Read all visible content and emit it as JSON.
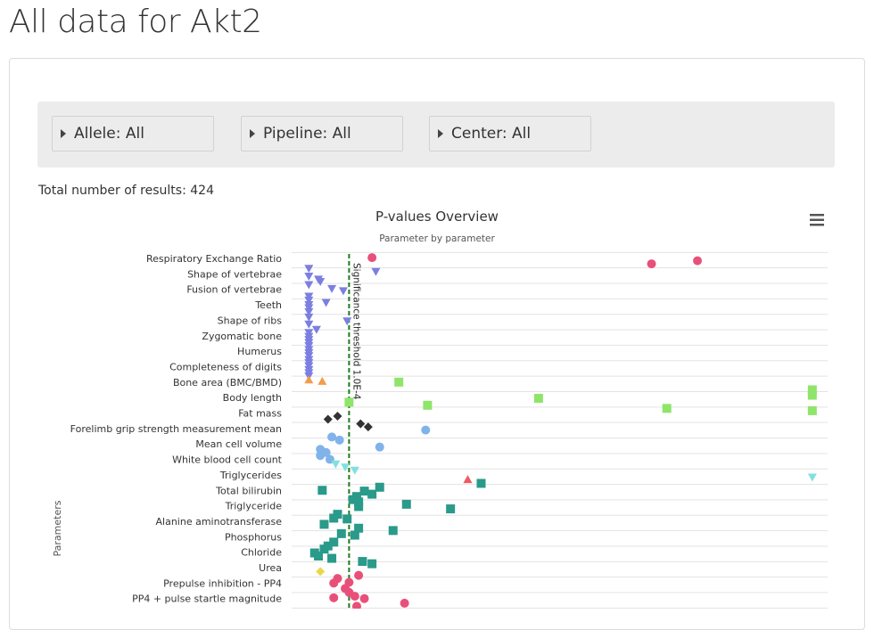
{
  "page": {
    "title": "All data for Akt2",
    "total_label": "Total number of results: ",
    "total_value": "424"
  },
  "filters": [
    {
      "label": "Allele: All"
    },
    {
      "label": "Pipeline: All"
    },
    {
      "label": "Center: All"
    }
  ],
  "colors": {
    "pink": "#e8507a",
    "purple": "#7b7fe0",
    "orange": "#f59b4c",
    "lightgreen": "#8ee56a",
    "black": "#333333",
    "lightblue": "#7fb3ea",
    "cyan": "#7fe1e0",
    "red": "#f05a62",
    "teal": "#2a9a8a",
    "yellow": "#e8d84a",
    "threshold": "#1e7a1e"
  },
  "chart_data": {
    "type": "scatter",
    "title": "P-values Overview",
    "subtitle": "Parameter by parameter",
    "ylabel": "Parameters",
    "threshold_label": "Significance threshold 1.0E-4",
    "threshold_x": 1,
    "xlim": [
      -2,
      26
    ],
    "categories": [
      "Respiratory Exchange Ratio",
      "",
      "Shape of vertebrae",
      "",
      "Fusion of vertebrae",
      "",
      "Teeth",
      "",
      "Shape of ribs",
      "",
      "Zygomatic bone",
      "",
      "Humerus",
      "",
      "Completeness of digits",
      "",
      "Bone area (BMC/BMD)",
      "",
      "Body length",
      "",
      "Fat mass",
      "",
      "Forelimb grip strength measurement mean",
      "",
      "Mean cell volume",
      "",
      "White blood cell count",
      "",
      "Triglycerides",
      "",
      "Total bilirubin",
      "",
      "Triglyceride",
      "",
      "Alanine aminotransferase",
      "",
      "Phosphorus",
      "",
      "Chloride",
      "",
      "Urea",
      "",
      "Prepulse inhibition - PP4",
      "",
      "PP4 + pulse startle magnitude",
      ""
    ],
    "visible_labels": [
      {
        "label": "Respiratory Exchange Ratio",
        "index": 0
      },
      {
        "label": "Shape of vertebrae",
        "index": 1
      },
      {
        "label": "Fusion of vertebrae",
        "index": 2
      },
      {
        "label": "Teeth",
        "index": 3
      },
      {
        "label": "Shape of ribs",
        "index": 4
      },
      {
        "label": "Zygomatic bone",
        "index": 5
      },
      {
        "label": "Humerus",
        "index": 6
      },
      {
        "label": "Completeness of digits",
        "index": 7
      },
      {
        "label": "Bone area (BMC/BMD)",
        "index": 8
      },
      {
        "label": "Body length",
        "index": 9
      },
      {
        "label": "Fat mass",
        "index": 10
      },
      {
        "label": "Forelimb grip strength measurement mean",
        "index": 11
      },
      {
        "label": "Mean cell volume",
        "index": 12
      },
      {
        "label": "White blood cell count",
        "index": 13
      },
      {
        "label": "Triglycerides",
        "index": 14
      },
      {
        "label": "Total bilirubin",
        "index": 15
      },
      {
        "label": "Triglyceride",
        "index": 16
      },
      {
        "label": "Alanine aminotransferase",
        "index": 17
      },
      {
        "label": "Phosphorus",
        "index": 18
      },
      {
        "label": "Chloride",
        "index": 19
      },
      {
        "label": "Urea",
        "index": 20
      },
      {
        "label": "Prepulse inhibition - PP4",
        "index": 21
      },
      {
        "label": "PP4 + pulse startle magnitude",
        "index": 22
      }
    ],
    "y_step_labels": 23,
    "series": [
      {
        "color": "pink",
        "symbol": "circle",
        "points": [
          [
            2.2,
            -0.05
          ],
          [
            16.8,
            0.35
          ],
          [
            19.2,
            0.15
          ]
        ]
      },
      {
        "color": "purple",
        "symbol": "triangle-down",
        "points": [
          [
            -1.1,
            0.65
          ],
          [
            2.4,
            0.85
          ],
          [
            -1.1,
            1.15
          ],
          [
            -0.6,
            1.35
          ],
          [
            -0.5,
            1.5
          ],
          [
            -1.1,
            1.7
          ],
          [
            0.1,
            1.95
          ],
          [
            0.7,
            2.1
          ],
          [
            -1.1,
            2.45
          ],
          [
            -0.2,
            2.85
          ],
          [
            -1.1,
            2.7
          ],
          [
            -1.1,
            3.0
          ],
          [
            -1.1,
            3.2
          ],
          [
            -1.1,
            3.45
          ],
          [
            0.9,
            4.05
          ],
          [
            -1.1,
            3.8
          ],
          [
            -1.1,
            4.25
          ],
          [
            -0.7,
            4.6
          ],
          [
            -1.1,
            4.8
          ],
          [
            -1.1,
            5.05
          ],
          [
            -1.1,
            5.25
          ],
          [
            -1.1,
            5.45
          ],
          [
            -1.1,
            5.65
          ],
          [
            -1.1,
            5.9
          ],
          [
            -1.1,
            6.1
          ],
          [
            -1.1,
            6.3
          ],
          [
            -1.1,
            6.55
          ],
          [
            -1.1,
            6.75
          ],
          [
            -1.1,
            6.95
          ],
          [
            -1.1,
            7.2
          ],
          [
            -1.1,
            7.4
          ],
          [
            -1.1,
            7.6
          ]
        ]
      },
      {
        "color": "orange",
        "symbol": "triangle-up",
        "points": [
          [
            -1.1,
            7.85
          ],
          [
            -0.4,
            7.95
          ]
        ]
      },
      {
        "color": "lightgreen",
        "symbol": "square",
        "points": [
          [
            3.6,
            8.0
          ],
          [
            1.0,
            9.3
          ],
          [
            5.1,
            9.5
          ],
          [
            10.9,
            9.05
          ],
          [
            17.6,
            9.7
          ],
          [
            25.2,
            8.5
          ],
          [
            25.2,
            8.85
          ],
          [
            25.2,
            9.85
          ]
        ]
      },
      {
        "color": "black",
        "symbol": "diamond",
        "points": [
          [
            -0.1,
            10.4
          ],
          [
            0.4,
            10.2
          ],
          [
            1.6,
            10.7
          ],
          [
            2.0,
            10.9
          ]
        ]
      },
      {
        "color": "lightblue",
        "symbol": "circle",
        "points": [
          [
            5.0,
            11.1
          ],
          [
            0.1,
            11.55
          ],
          [
            0.5,
            11.75
          ],
          [
            2.6,
            12.2
          ],
          [
            -0.5,
            12.35
          ],
          [
            -0.5,
            12.75
          ],
          [
            -0.2,
            12.55
          ],
          [
            0.0,
            13.0
          ]
        ]
      },
      {
        "color": "cyan",
        "symbol": "triangle-down",
        "points": [
          [
            0.3,
            13.3
          ],
          [
            0.8,
            13.5
          ],
          [
            1.3,
            13.7
          ],
          [
            25.2,
            14.15
          ]
        ]
      },
      {
        "color": "red",
        "symbol": "triangle-up",
        "points": [
          [
            7.2,
            14.3
          ]
        ]
      },
      {
        "color": "teal",
        "symbol": "square",
        "points": [
          [
            -0.4,
            15.0
          ],
          [
            2.6,
            14.8
          ],
          [
            7.9,
            14.55
          ],
          [
            1.4,
            15.4
          ],
          [
            1.8,
            15.05
          ],
          [
            2.2,
            15.25
          ],
          [
            1.2,
            15.6
          ],
          [
            1.5,
            15.75
          ],
          [
            4.0,
            15.9
          ],
          [
            1.5,
            16.05
          ],
          [
            6.3,
            16.2
          ],
          [
            0.4,
            16.55
          ],
          [
            0.2,
            16.8
          ],
          [
            0.9,
            16.85
          ],
          [
            -0.3,
            17.2
          ],
          [
            1.5,
            17.45
          ],
          [
            0.6,
            17.8
          ],
          [
            3.3,
            17.6
          ],
          [
            1.3,
            17.9
          ],
          [
            0.2,
            18.35
          ],
          [
            -0.1,
            18.6
          ],
          [
            -0.3,
            18.8
          ],
          [
            -0.8,
            19.05
          ],
          [
            -0.6,
            19.25
          ],
          [
            0.1,
            19.4
          ],
          [
            1.7,
            19.6
          ],
          [
            2.2,
            19.75
          ]
        ]
      },
      {
        "color": "yellow",
        "symbol": "diamond",
        "points": [
          [
            -0.5,
            20.25
          ]
        ]
      },
      {
        "color": "pink",
        "symbol": "circle",
        "points": [
          [
            0.4,
            20.7
          ],
          [
            1.5,
            20.5
          ],
          [
            0.2,
            21.0
          ],
          [
            1.0,
            20.95
          ],
          [
            0.8,
            21.35
          ],
          [
            1.0,
            21.6
          ],
          [
            0.2,
            21.95
          ],
          [
            1.3,
            21.85
          ],
          [
            1.8,
            22.0
          ],
          [
            3.9,
            22.3
          ],
          [
            1.4,
            22.5
          ]
        ]
      }
    ]
  }
}
